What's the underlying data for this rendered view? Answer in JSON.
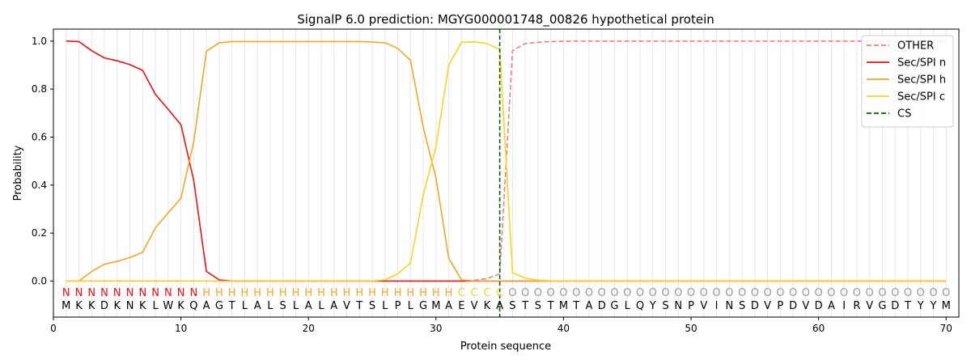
{
  "chart_data": {
    "type": "line",
    "title": "SignalP 6.0 prediction: MGYG000001748_00826 hypothetical protein",
    "xlabel": "Protein sequence",
    "ylabel": "Probability",
    "xlim": [
      0,
      71
    ],
    "ylim": [
      -0.15,
      1.05
    ],
    "xticks": [
      0,
      10,
      20,
      30,
      40,
      50,
      60,
      70
    ],
    "yticks": [
      0.0,
      0.2,
      0.4,
      0.6,
      0.8,
      1.0
    ],
    "grid": "vertical lines at each residue",
    "legend_position": "top-right",
    "x": [
      1,
      2,
      3,
      4,
      5,
      6,
      7,
      8,
      9,
      10,
      11,
      12,
      13,
      14,
      15,
      16,
      17,
      18,
      19,
      20,
      21,
      22,
      23,
      24,
      25,
      26,
      27,
      28,
      29,
      30,
      31,
      32,
      33,
      34,
      35,
      36,
      37,
      38,
      39,
      40,
      41,
      42,
      43,
      44,
      45,
      46,
      47,
      48,
      49,
      50,
      51,
      52,
      53,
      54,
      55,
      56,
      57,
      58,
      59,
      60,
      61,
      62,
      63,
      64,
      65,
      66,
      67,
      68,
      69,
      70
    ],
    "series": [
      {
        "name": "OTHER",
        "color": "#f08080",
        "dash": "dashed",
        "values": [
          0,
          0,
          0,
          0,
          0,
          0,
          0,
          0,
          0,
          0,
          0,
          0,
          0,
          0,
          0,
          0,
          0,
          0,
          0,
          0,
          0,
          0,
          0,
          0,
          0,
          0,
          0,
          0,
          0,
          0,
          0,
          0,
          0.003,
          0.01,
          0.03,
          0.96,
          0.99,
          0.995,
          0.998,
          0.999,
          1,
          1,
          1,
          1,
          1,
          1,
          1,
          1,
          1,
          1,
          1,
          1,
          1,
          1,
          1,
          1,
          1,
          1,
          1,
          1,
          1,
          1,
          1,
          1,
          1,
          1,
          1,
          1,
          1,
          1
        ]
      },
      {
        "name": "Sec/SPI n",
        "color": "#ee1111",
        "dash": "solid",
        "values": [
          1.0,
          0.998,
          0.96,
          0.93,
          0.918,
          0.902,
          0.878,
          0.778,
          0.716,
          0.652,
          0.42,
          0.04,
          0.005,
          0,
          0,
          0,
          0,
          0,
          0,
          0,
          0,
          0,
          0,
          0,
          0,
          0,
          0,
          0,
          0,
          0,
          0,
          0,
          0,
          0,
          0,
          0,
          0,
          0,
          0,
          0,
          0,
          0,
          0,
          0,
          0,
          0,
          0,
          0,
          0,
          0,
          0,
          0,
          0,
          0,
          0,
          0,
          0,
          0,
          0,
          0,
          0,
          0,
          0,
          0,
          0,
          0,
          0,
          0,
          0,
          0
        ]
      },
      {
        "name": "Sec/SPI h",
        "color": "#f5a623",
        "dash": "solid",
        "values": [
          0,
          0,
          0.04,
          0.07,
          0.082,
          0.098,
          0.12,
          0.222,
          0.284,
          0.345,
          0.58,
          0.958,
          0.993,
          0.998,
          0.998,
          0.998,
          0.998,
          0.998,
          0.998,
          0.998,
          0.998,
          0.998,
          0.998,
          0.998,
          0.996,
          0.993,
          0.97,
          0.92,
          0.64,
          0.43,
          0.095,
          0.005,
          0,
          0,
          0,
          0,
          0,
          0,
          0,
          0,
          0,
          0,
          0,
          0,
          0,
          0,
          0,
          0,
          0,
          0,
          0,
          0,
          0,
          0,
          0,
          0,
          0,
          0,
          0,
          0,
          0,
          0,
          0,
          0,
          0,
          0,
          0,
          0,
          0,
          0
        ]
      },
      {
        "name": "Sec/SPI c",
        "color": "#ffd21f",
        "dash": "solid",
        "values": [
          0,
          0,
          0,
          0,
          0,
          0,
          0,
          0,
          0,
          0,
          0,
          0,
          0,
          0,
          0,
          0,
          0,
          0,
          0,
          0,
          0,
          0,
          0,
          0,
          0,
          0.005,
          0.03,
          0.075,
          0.36,
          0.56,
          0.9,
          0.995,
          0.997,
          0.99,
          0.965,
          0.035,
          0.012,
          0.004,
          0.001,
          0,
          0,
          0,
          0,
          0,
          0,
          0,
          0,
          0,
          0,
          0,
          0,
          0,
          0,
          0,
          0,
          0,
          0,
          0,
          0,
          0,
          0,
          0,
          0,
          0,
          0,
          0,
          0,
          0,
          0,
          0
        ]
      }
    ],
    "cs_line": {
      "name": "CS",
      "x": 35,
      "color": "#006400",
      "dash": "dashed"
    },
    "region_labels": [
      "N",
      "N",
      "N",
      "N",
      "N",
      "N",
      "N",
      "N",
      "N",
      "N",
      "N",
      "H",
      "H",
      "H",
      "H",
      "H",
      "H",
      "H",
      "H",
      "H",
      "H",
      "H",
      "H",
      "H",
      "H",
      "H",
      "H",
      "H",
      "H",
      "H",
      "H",
      "C",
      "C",
      "C",
      "C",
      "O",
      "O",
      "O",
      "O",
      "O",
      "O",
      "O",
      "O",
      "O",
      "O",
      "O",
      "O",
      "O",
      "O",
      "O",
      "O",
      "O",
      "O",
      "O",
      "O",
      "O",
      "O",
      "O",
      "O",
      "O",
      "O",
      "O",
      "O",
      "O",
      "O",
      "O",
      "O",
      "O",
      "O",
      "O"
    ],
    "region_colors": {
      "N": "#ee1111",
      "H": "#f5a623",
      "C": "#ffd21f",
      "O": "#999999"
    },
    "residues": [
      "M",
      "K",
      "K",
      "D",
      "K",
      "N",
      "K",
      "L",
      "W",
      "K",
      "Q",
      "A",
      "G",
      "T",
      "L",
      "A",
      "L",
      "S",
      "L",
      "A",
      "L",
      "A",
      "V",
      "T",
      "S",
      "L",
      "P",
      "L",
      "G",
      "M",
      "A",
      "E",
      "V",
      "K",
      "A",
      "S",
      "T",
      "S",
      "T",
      "M",
      "T",
      "A",
      "D",
      "G",
      "L",
      "Q",
      "Y",
      "S",
      "N",
      "P",
      "V",
      "I",
      "N",
      "S",
      "D",
      "V",
      "P",
      "D",
      "V",
      "D",
      "A",
      "I",
      "R",
      "V",
      "G",
      "D",
      "T",
      "Y",
      "Y",
      "M"
    ]
  }
}
